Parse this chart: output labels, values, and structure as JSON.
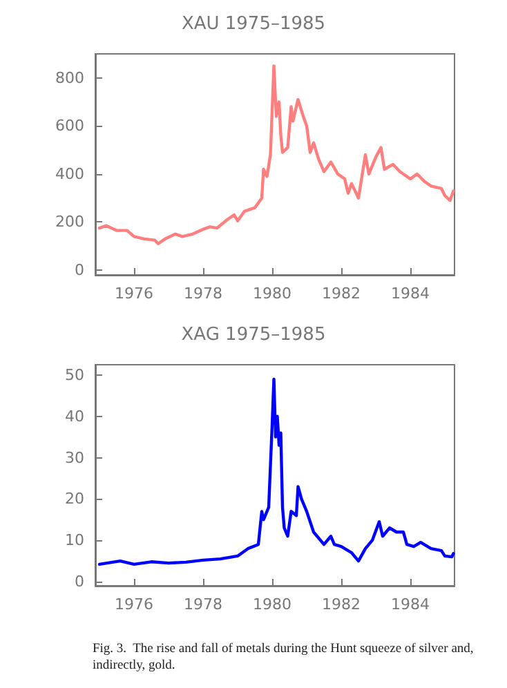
{
  "chart_data": [
    {
      "type": "line",
      "title": "XAU 1975–1985",
      "xlim": [
        1974.88,
        1985.28
      ],
      "ylim": [
        -20,
        900
      ],
      "xticks": [
        1976,
        1978,
        1980,
        1982,
        1984
      ],
      "yticks": [
        0,
        200,
        400,
        600,
        800
      ],
      "grid": false,
      "marker": "none",
      "series": [
        {
          "color": "#ff7f7f",
          "x": [
            1975.0,
            1975.2,
            1975.5,
            1975.8,
            1976.0,
            1976.3,
            1976.6,
            1976.7,
            1976.9,
            1977.2,
            1977.4,
            1977.7,
            1978.0,
            1978.2,
            1978.4,
            1978.7,
            1978.9,
            1979.0,
            1979.2,
            1979.5,
            1979.7,
            1979.75,
            1979.85,
            1979.95,
            1980.05,
            1980.12,
            1980.2,
            1980.25,
            1980.3,
            1980.45,
            1980.55,
            1980.6,
            1980.75,
            1980.9,
            1981.0,
            1981.1,
            1981.2,
            1981.35,
            1981.5,
            1981.7,
            1981.9,
            1982.1,
            1982.2,
            1982.3,
            1982.5,
            1982.7,
            1982.8,
            1983.0,
            1983.15,
            1983.25,
            1983.5,
            1983.7,
            1984.0,
            1984.2,
            1984.4,
            1984.6,
            1984.9,
            1985.0,
            1985.15,
            1985.25
          ],
          "values": [
            175,
            185,
            165,
            165,
            140,
            130,
            125,
            110,
            130,
            150,
            140,
            150,
            170,
            180,
            175,
            210,
            230,
            205,
            245,
            260,
            300,
            420,
            390,
            480,
            850,
            640,
            700,
            560,
            490,
            510,
            680,
            620,
            710,
            640,
            600,
            490,
            530,
            460,
            410,
            450,
            400,
            380,
            320,
            360,
            300,
            480,
            400,
            470,
            510,
            420,
            440,
            410,
            380,
            400,
            370,
            350,
            340,
            310,
            290,
            330
          ]
        }
      ]
    },
    {
      "type": "line",
      "title": "XAG 1975–1985",
      "xlim": [
        1974.88,
        1985.28
      ],
      "ylim": [
        -1,
        52.5
      ],
      "xticks": [
        1976,
        1978,
        1980,
        1982,
        1984
      ],
      "yticks": [
        0,
        10,
        20,
        30,
        40,
        50
      ],
      "grid": false,
      "marker": "none",
      "annotations": [
        "Fig. 3.  The rise and fall of metals during the Hunt squeeze of silver and, indirectly, gold."
      ],
      "series": [
        {
          "color": "#0000ff",
          "x": [
            1975.0,
            1975.6,
            1976.0,
            1976.5,
            1977.0,
            1977.5,
            1978.0,
            1978.5,
            1979.0,
            1979.3,
            1979.6,
            1979.7,
            1979.75,
            1979.9,
            1980.0,
            1980.05,
            1980.1,
            1980.15,
            1980.2,
            1980.25,
            1980.3,
            1980.35,
            1980.45,
            1980.55,
            1980.7,
            1980.75,
            1980.85,
            1981.0,
            1981.2,
            1981.5,
            1981.7,
            1981.8,
            1982.0,
            1982.3,
            1982.5,
            1982.7,
            1982.9,
            1983.1,
            1983.2,
            1983.4,
            1983.6,
            1983.8,
            1983.9,
            1984.1,
            1984.3,
            1984.6,
            1984.9,
            1985.0,
            1985.2,
            1985.25
          ],
          "values": [
            4.2,
            5.0,
            4.2,
            4.8,
            4.5,
            4.7,
            5.2,
            5.5,
            6.2,
            8,
            9,
            17,
            15,
            18,
            38,
            49,
            35,
            40,
            33,
            36,
            18,
            13,
            11,
            17,
            16,
            23,
            20,
            17,
            12,
            9,
            11,
            9,
            8.5,
            7,
            5,
            8,
            10,
            14.5,
            11,
            13,
            12,
            12,
            9,
            8.5,
            9.5,
            8,
            7.5,
            6.2,
            6,
            6.8
          ]
        }
      ]
    }
  ]
}
